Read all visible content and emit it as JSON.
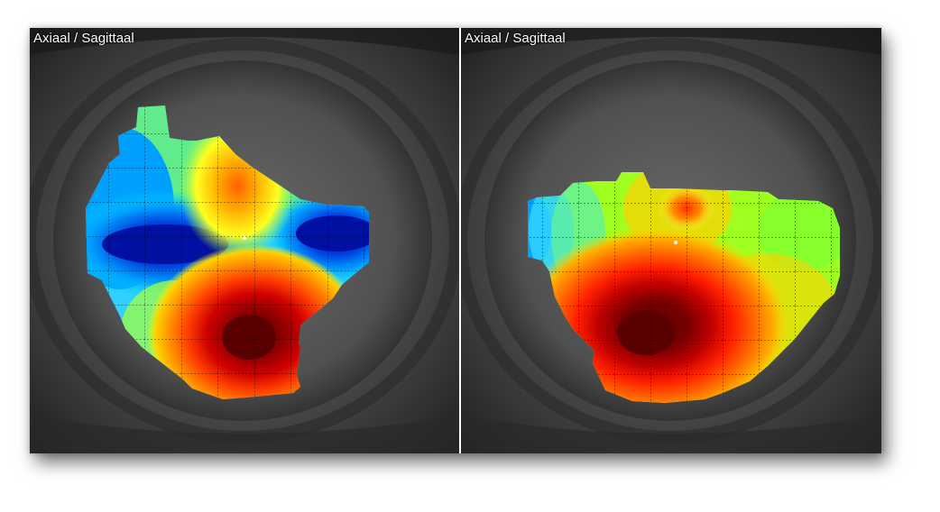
{
  "panels": [
    {
      "label": "Axiaal / Sagittaal",
      "map_colors": [
        "#00a0ff",
        "#0020b0",
        "#ff3000",
        "#8a0000"
      ]
    },
    {
      "label": "Axiaal / Sagittaal",
      "map_colors": [
        "#80ff20",
        "#ff8000",
        "#ff2000",
        "#7a0000"
      ]
    }
  ]
}
